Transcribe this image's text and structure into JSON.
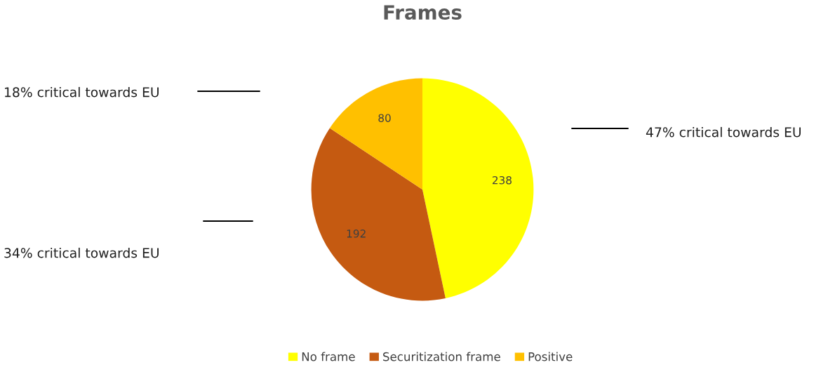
{
  "chart_data": {
    "type": "pie",
    "title": "Frames",
    "categories": [
      "No frame",
      "Securitization frame",
      "Positive"
    ],
    "values": [
      238,
      192,
      80
    ],
    "colors": [
      "#ffff00",
      "#c55a11",
      "#ffc000"
    ],
    "data_labels": true,
    "legend": "bottom",
    "annotations": [
      "47% critical towards EU",
      "34% critical towards EU",
      "18% critical towards EU"
    ]
  }
}
